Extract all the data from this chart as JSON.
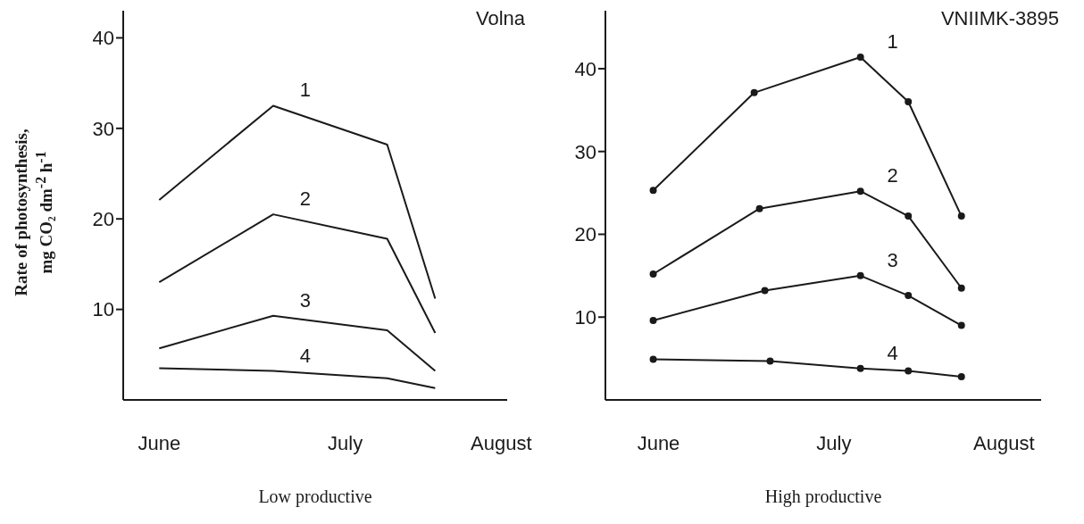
{
  "chart_data": [
    {
      "type": "line",
      "title": "Volna",
      "xlabel": "Low productive",
      "ylabel": "Rate of photosynthesis,\nmg CO₂ dm$^{-2}$ h$^{-1}$",
      "x": [
        "--06-15",
        "--07-04",
        "--07-23",
        "--07-31"
      ],
      "xlim": [
        "--06-09",
        "--08-12"
      ],
      "xticks": [
        {
          "value": "--06-15",
          "label": "June"
        },
        {
          "value": "--07-16",
          "label": "July"
        },
        {
          "value": "--08-11",
          "label": "August"
        }
      ],
      "ylim": [
        0,
        43
      ],
      "yticks": [
        10,
        20,
        30,
        40
      ],
      "grid": false,
      "legend": false,
      "marker": "none",
      "line_style": "solid",
      "series": [
        {
          "name": "1",
          "color": "#1a1a1a",
          "values": [
            22.1,
            32.5,
            28.2,
            11.2
          ]
        },
        {
          "name": "2",
          "color": "#1a1a1a",
          "values": [
            13.0,
            20.5,
            17.8,
            7.4
          ]
        },
        {
          "name": "3",
          "color": "#1a1a1a",
          "values": [
            5.7,
            9.3,
            7.7,
            3.2
          ]
        },
        {
          "name": "4",
          "color": "#1a1a1a",
          "values": [
            3.5,
            3.2,
            2.4,
            1.3
          ]
        }
      ]
    },
    {
      "type": "line",
      "title": "VNIIMK-3895",
      "xlabel": "High productive",
      "x": [
        "--06-13",
        "--07-02",
        "--07-22",
        "--07-31",
        "--08-10"
      ],
      "xlim": [
        "--06-04",
        "--08-25"
      ],
      "xticks": [
        {
          "value": "--06-14",
          "label": "June"
        },
        {
          "value": "--07-17",
          "label": "July"
        },
        {
          "value": "--08-18",
          "label": "August"
        }
      ],
      "ylim": [
        0,
        47
      ],
      "yticks": [
        10,
        20,
        30,
        40
      ],
      "grid": false,
      "legend": false,
      "marker": "circle",
      "line_style": "solid",
      "series": [
        {
          "name": "1",
          "color": "#1a1a1a",
          "values": [
            25.3,
            37.1,
            41.4,
            36.0,
            22.2
          ]
        },
        {
          "name": "2",
          "color": "#1a1a1a",
          "x": [
            "--06-13",
            "--07-03",
            "--07-22",
            "--07-31",
            "--08-10"
          ],
          "values": [
            15.2,
            23.1,
            25.2,
            22.2,
            13.5
          ]
        },
        {
          "name": "3",
          "color": "#1a1a1a",
          "x": [
            "--06-13",
            "--07-04",
            "--07-22",
            "--07-31",
            "--08-10"
          ],
          "values": [
            9.6,
            13.2,
            15.0,
            12.6,
            9.0
          ]
        },
        {
          "name": "4",
          "color": "#1a1a1a",
          "x": [
            "--06-13",
            "--07-05",
            "--07-22",
            "--07-31",
            "--08-10"
          ],
          "values": [
            4.9,
            4.7,
            3.8,
            3.5,
            2.8
          ]
        }
      ]
    }
  ]
}
